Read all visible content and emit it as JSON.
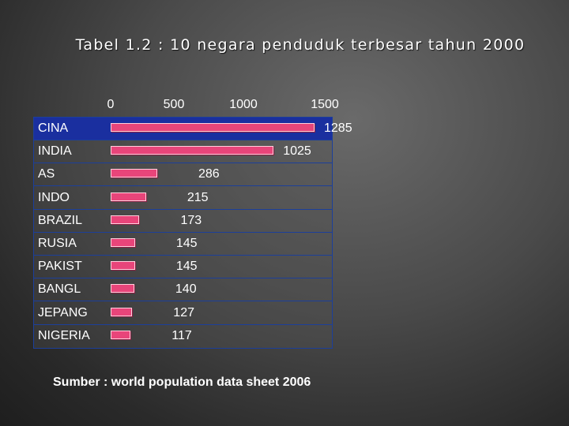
{
  "title": "Tabel 1.2 : 10 negara penduduk terbesar tahun 2000",
  "chart_data": {
    "type": "bar",
    "orientation": "horizontal",
    "categories": [
      "CINA",
      "INDIA",
      "AS",
      "INDO",
      "BRAZIL",
      "RUSIA",
      "PAKIST",
      "BANGL",
      "JEPANG",
      "NIGERIA"
    ],
    "values": [
      1285,
      1025,
      286,
      215,
      173,
      145,
      145,
      140,
      127,
      117
    ],
    "value_labels": [
      "1285",
      "1025",
      "286",
      "215",
      "173",
      "145",
      "145",
      "140",
      "127",
      "117"
    ],
    "ticks": [
      "0",
      "500",
      "1000",
      "1500"
    ],
    "xlim": [
      0,
      1500
    ],
    "bar_color": "#e8457a",
    "header_row_color": "#1a2f9f"
  },
  "source": "Sumber : world population data sheet 2006"
}
